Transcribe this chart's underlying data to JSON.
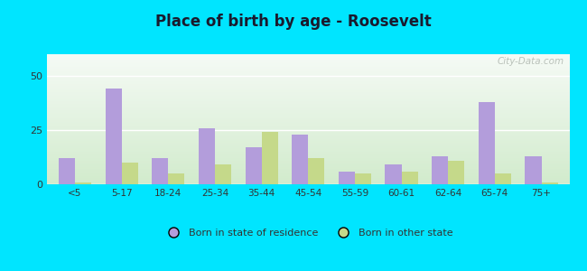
{
  "title": "Place of birth by age - Roosevelt",
  "categories": [
    "<5",
    "5-17",
    "18-24",
    "25-34",
    "35-44",
    "45-54",
    "55-59",
    "60-61",
    "62-64",
    "65-74",
    "75+"
  ],
  "born_in_state": [
    12,
    44,
    12,
    26,
    17,
    23,
    6,
    9,
    13,
    38,
    13
  ],
  "born_other_state": [
    1,
    10,
    5,
    9,
    24,
    12,
    5,
    6,
    11,
    5,
    1
  ],
  "bar_color_state": "#b39ddb",
  "bar_color_other": "#c5d98a",
  "background_outer": "#00e5ff",
  "ylim": [
    0,
    60
  ],
  "yticks": [
    0,
    25,
    50
  ],
  "bar_width": 0.35,
  "legend_label_state": "Born in state of residence",
  "legend_label_other": "Born in other state",
  "watermark": "City-Data.com",
  "title_color": "#1a1a2e",
  "tick_color": "#333333"
}
